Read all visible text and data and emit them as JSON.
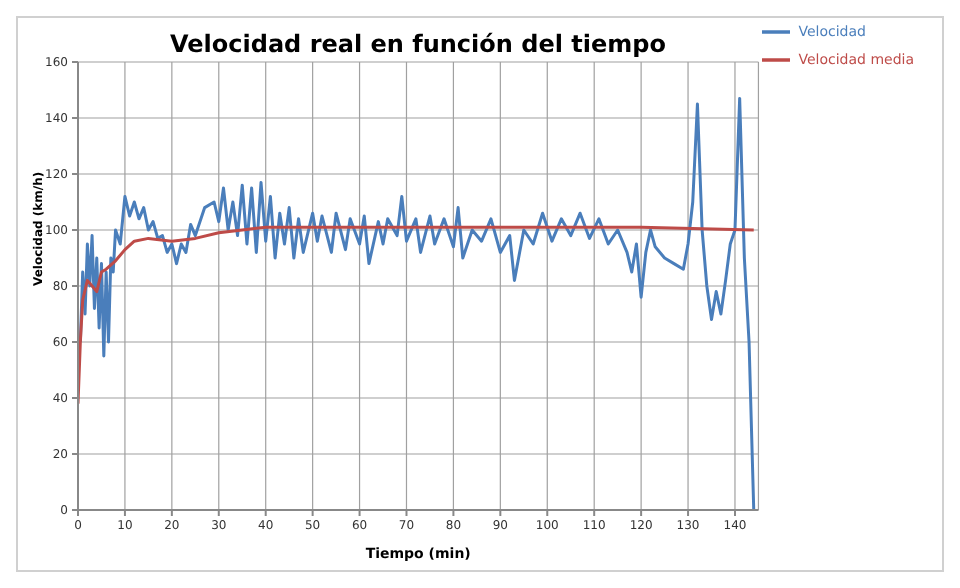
{
  "chart_data": {
    "type": "line",
    "title": "Velocidad real en función del tiempo",
    "xlabel": "Tiempo (min)",
    "ylabel": "Velocidad (km/h)",
    "xlim": [
      0,
      145
    ],
    "xticks": [
      0,
      10,
      20,
      30,
      40,
      50,
      60,
      70,
      80,
      90,
      100,
      110,
      120,
      130,
      140
    ],
    "ylim": [
      0,
      160
    ],
    "yticks": [
      0,
      20,
      40,
      60,
      80,
      100,
      120,
      140,
      160
    ],
    "grid": true,
    "legend": "top right",
    "marker": "none",
    "line_style": "solid",
    "series": [
      {
        "name": "Velocidad",
        "color": "#4a7ebb",
        "x": [
          0.5,
          1,
          1.5,
          2,
          2.5,
          3,
          3.5,
          4,
          4.5,
          5,
          5.5,
          6,
          6.5,
          7,
          7.5,
          8,
          9,
          10,
          11,
          12,
          13,
          14,
          15,
          16,
          17,
          18,
          19,
          20,
          21,
          22,
          23,
          24,
          25,
          27,
          29,
          30,
          31,
          32,
          33,
          34,
          35,
          36,
          37,
          38,
          39,
          40,
          41,
          42,
          43,
          44,
          45,
          46,
          47,
          48,
          50,
          51,
          52,
          54,
          55,
          57,
          58,
          60,
          61,
          62,
          64,
          65,
          66,
          68,
          69,
          70,
          72,
          73,
          75,
          76,
          78,
          80,
          81,
          82,
          84,
          86,
          88,
          90,
          92,
          93,
          95,
          97,
          99,
          101,
          103,
          105,
          107,
          109,
          111,
          113,
          115,
          117,
          118,
          119,
          120,
          121,
          122,
          123,
          125,
          127,
          129,
          130,
          131,
          132,
          133,
          134,
          135,
          136,
          137,
          138,
          139,
          140,
          141,
          142,
          143,
          143.5,
          144
        ],
        "values": [
          60,
          85,
          70,
          95,
          80,
          98,
          72,
          90,
          65,
          88,
          55,
          85,
          60,
          90,
          85,
          100,
          95,
          112,
          105,
          110,
          104,
          108,
          100,
          103,
          97,
          98,
          92,
          95,
          88,
          95,
          92,
          102,
          98,
          108,
          110,
          103,
          115,
          100,
          110,
          98,
          116,
          95,
          115,
          92,
          117,
          96,
          112,
          90,
          106,
          95,
          108,
          90,
          104,
          92,
          106,
          96,
          105,
          92,
          106,
          93,
          104,
          95,
          105,
          88,
          103,
          95,
          104,
          98,
          112,
          96,
          104,
          92,
          105,
          95,
          104,
          94,
          108,
          90,
          100,
          96,
          104,
          92,
          98,
          82,
          100,
          95,
          106,
          96,
          104,
          98,
          106,
          97,
          104,
          95,
          100,
          92,
          85,
          95,
          76,
          92,
          100,
          94,
          90,
          88,
          86,
          95,
          110,
          145,
          100,
          80,
          68,
          78,
          70,
          82,
          95,
          100,
          147,
          90,
          60,
          30,
          0
        ]
      },
      {
        "name": "Velocidad media",
        "color": "#be4b48",
        "x": [
          0,
          0.5,
          1,
          2,
          3,
          4,
          5,
          6,
          8,
          10,
          12,
          15,
          20,
          25,
          30,
          35,
          40,
          50,
          60,
          80,
          100,
          120,
          144
        ],
        "values": [
          38,
          60,
          75,
          82,
          80,
          78,
          85,
          86,
          89,
          93,
          96,
          97,
          96,
          97,
          99,
          100,
          101,
          101,
          101,
          101,
          101,
          101,
          100
        ]
      }
    ]
  }
}
